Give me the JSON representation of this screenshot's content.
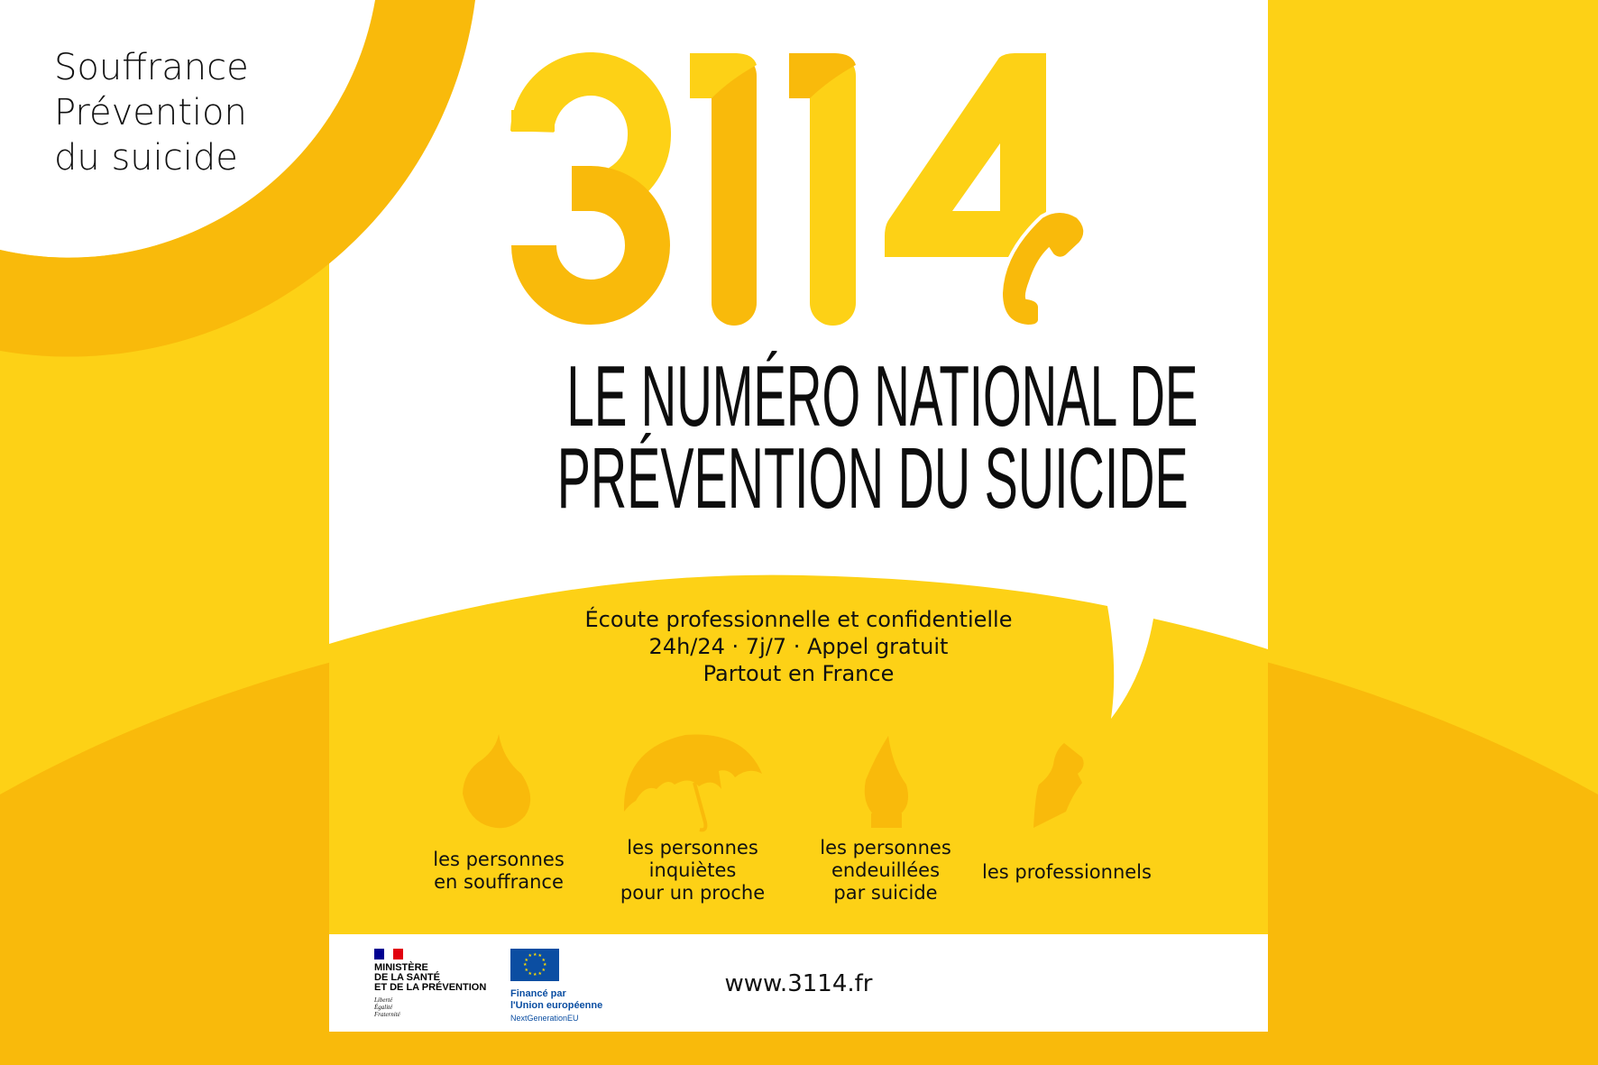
{
  "colors": {
    "light_yellow": "#FDD116",
    "dark_yellow": "#F9BA0B",
    "white": "#FFFFFF",
    "text": "#111111",
    "eu_blue": "#0B4EA2"
  },
  "tagline": [
    "Souffrance",
    "Prévention",
    "du suicide"
  ],
  "logo": {
    "number": "3114",
    "icon": "phone-handset-icon"
  },
  "headline": [
    "LE NUMÉRO NATIONAL DE",
    "PRÉVENTION DU SUICIDE"
  ],
  "subtitle": [
    "Écoute professionnelle et confidentielle",
    "24h/24 · 7j/7 · Appel gratuit",
    "Partout en France"
  ],
  "audiences": [
    {
      "icon": "drop-icon",
      "lines": [
        "les personnes",
        "en souffrance"
      ]
    },
    {
      "icon": "umbrella-icon",
      "lines": [
        "les personnes",
        "inquiètes",
        "pour un proche"
      ]
    },
    {
      "icon": "flame-icon",
      "lines": [
        "les personnes",
        "endeuillées",
        "par suicide"
      ]
    },
    {
      "icon": "fountain-pen-icon",
      "lines": [
        "les professionnels"
      ]
    }
  ],
  "footer": {
    "ministry": [
      "MINISTÈRE",
      "DE LA SANTÉ",
      "ET DE LA PRÉVENTION"
    ],
    "motto": [
      "Liberté",
      "Égalité",
      "Fraternité"
    ],
    "eu": [
      "Financé par",
      "l'Union européenne"
    ],
    "eu_program": "NextGenerationEU",
    "url": "www.3114.fr"
  }
}
